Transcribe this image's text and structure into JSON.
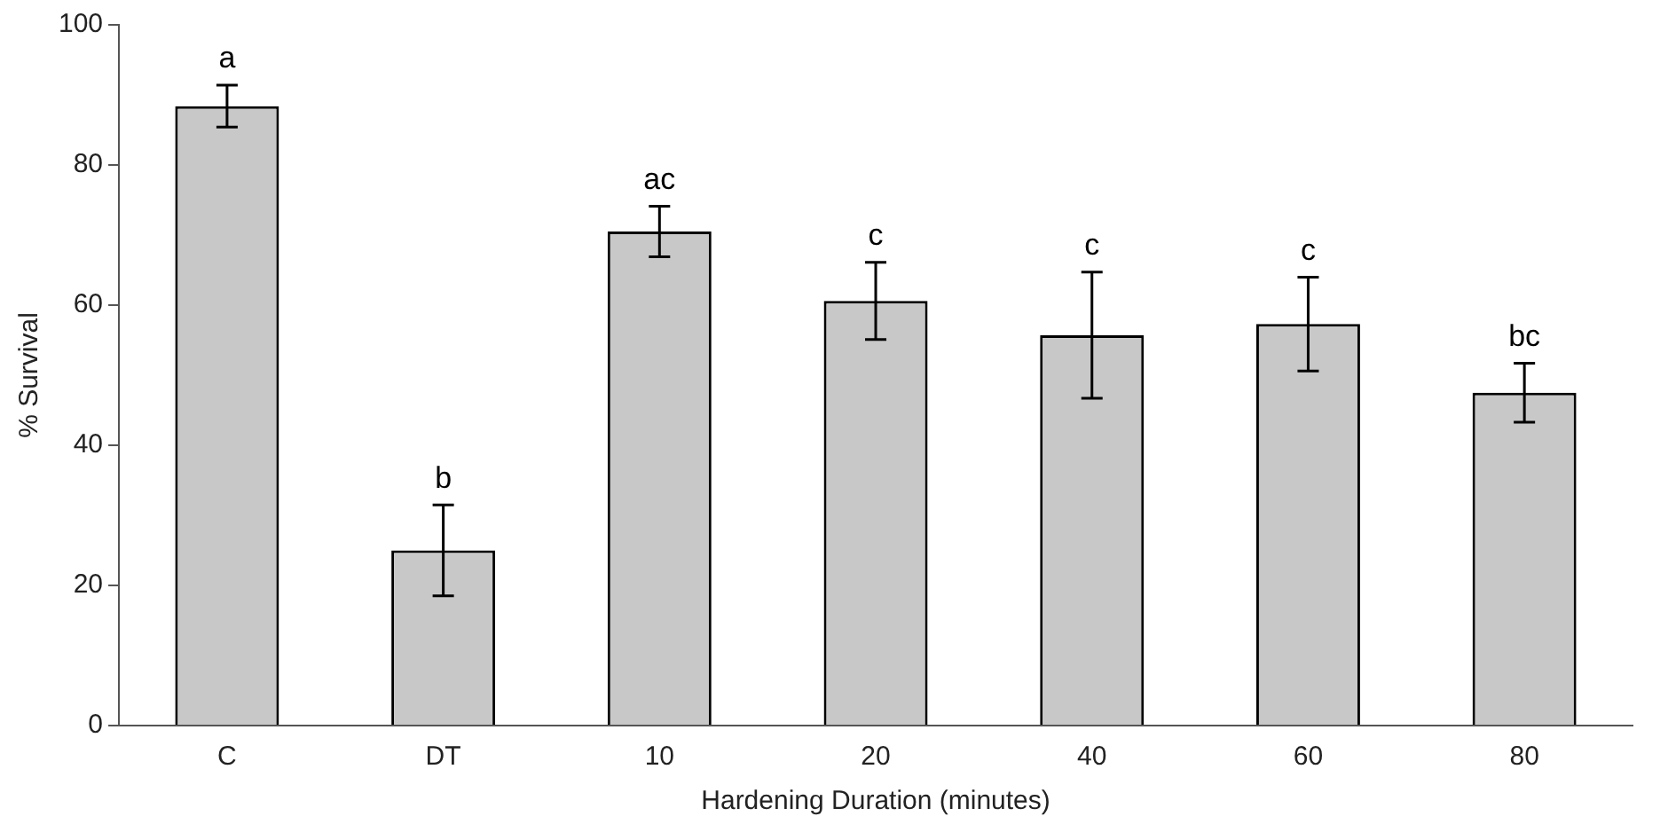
{
  "chart_data": {
    "type": "bar",
    "xlabel": "Hardening Duration (minutes)",
    "ylabel": "% Survival",
    "categories": [
      "C",
      "DT",
      "10",
      "20",
      "40",
      "60",
      "80"
    ],
    "values": [
      88.4,
      25.0,
      70.5,
      60.6,
      55.7,
      57.3,
      47.5
    ],
    "errors": [
      3,
      6.5,
      3.6,
      5.5,
      9,
      6.7,
      4.2
    ],
    "color": "#c8c8c8",
    "ylim": [
      0,
      100
    ],
    "yticks": [
      0,
      20,
      40,
      60,
      80,
      100
    ],
    "grid": false,
    "legend": false,
    "annotations": [
      {
        "text": "a",
        "x": "C",
        "y": 91.4
      },
      {
        "text": "b",
        "x": "DT",
        "y": 31.5
      },
      {
        "text": "ac",
        "x": "10",
        "y": 74.1
      },
      {
        "text": "c",
        "x": "20",
        "y": 66.1
      },
      {
        "text": "c",
        "x": "40",
        "y": 64.7
      },
      {
        "text": "c",
        "x": "60",
        "y": 64
      },
      {
        "text": "bc",
        "x": "80",
        "y": 51.7
      }
    ]
  }
}
